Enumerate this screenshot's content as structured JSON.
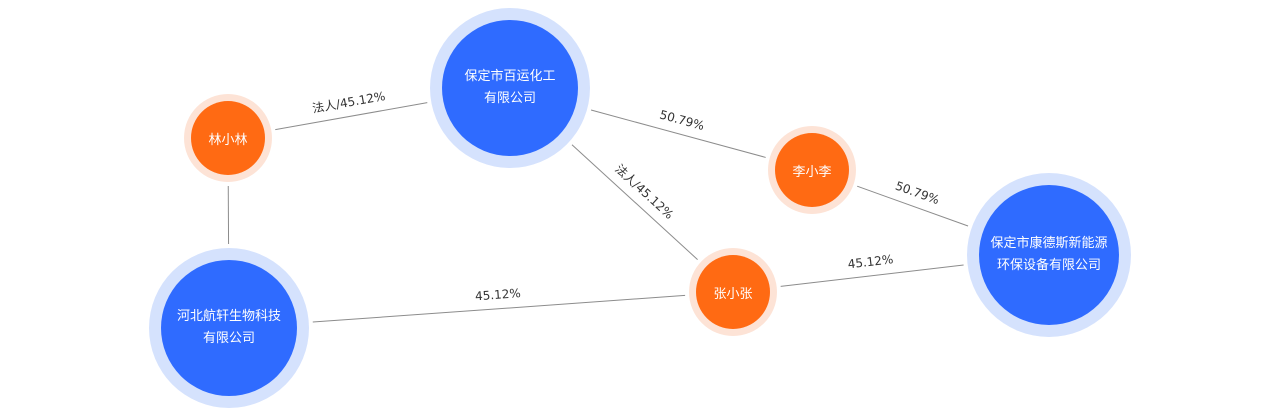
{
  "nodes": {
    "baoding_baiyun": {
      "type": "company",
      "lines": [
        "保定市百运化工",
        "有限公司"
      ]
    },
    "hebei_hangxuan": {
      "type": "company",
      "lines": [
        "河北航轩生物科技",
        "有限公司"
      ]
    },
    "baoding_kangdesi": {
      "type": "company",
      "lines": [
        "保定市康德斯新能源",
        "环保设备有限公司"
      ]
    },
    "lin_xiaolin": {
      "type": "person",
      "lines": [
        "林小林"
      ]
    },
    "li_xiaoli": {
      "type": "person",
      "lines": [
        "李小李"
      ]
    },
    "zhang_xiaozhang": {
      "type": "person",
      "lines": [
        "张小张"
      ]
    }
  },
  "edges": [
    {
      "from": "lin_xiaolin",
      "to": "baoding_baiyun",
      "label": "法人/45.12%"
    },
    {
      "from": "lin_xiaolin",
      "to": "hebei_hangxuan",
      "label": ""
    },
    {
      "from": "baoding_baiyun",
      "to": "li_xiaoli",
      "label": "50.79%"
    },
    {
      "from": "baoding_baiyun",
      "to": "zhang_xiaozhang",
      "label": "法人/45.12%"
    },
    {
      "from": "li_xiaoli",
      "to": "baoding_kangdesi",
      "label": "50.79%"
    },
    {
      "from": "zhang_xiaozhang",
      "to": "baoding_kangdesi",
      "label": "45.12%"
    },
    {
      "from": "hebei_hangxuan",
      "to": "zhang_xiaozhang",
      "label": "45.12%"
    }
  ],
  "colors": {
    "company_core": "#2f6bff",
    "company_halo": "#d5e2fd",
    "person_core": "#ff6a13",
    "person_halo": "#fde3d6",
    "edge": "#8c8c8c"
  }
}
